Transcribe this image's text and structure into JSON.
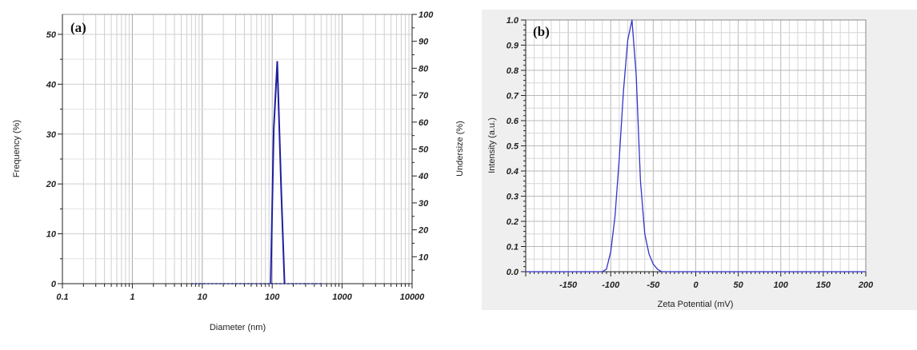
{
  "chart_data": [
    {
      "panel_label": "(a)",
      "type": "line",
      "xlabel": "Diameter (nm)",
      "ylabel": "Frequency (%)",
      "y2label": "Undersize (%)",
      "xscale": "log",
      "xlim": [
        0.1,
        10000
      ],
      "ylim": [
        0,
        54
      ],
      "y2lim": [
        0,
        100
      ],
      "xticks": [
        0.1,
        1,
        10,
        100,
        1000,
        10000
      ],
      "xtick_labels": [
        "0.1",
        "1",
        "10",
        "100",
        "1000",
        "10000"
      ],
      "yticks": [
        0,
        10,
        20,
        30,
        40,
        50
      ],
      "ytick_labels": [
        "0",
        "10",
        "20",
        "30",
        "40",
        "50"
      ],
      "y2ticks": [
        10,
        20,
        30,
        40,
        50,
        60,
        70,
        80,
        90,
        100
      ],
      "y2tick_labels": [
        "10",
        "20",
        "30",
        "40",
        "50",
        "60",
        "70",
        "80",
        "90",
        "100"
      ],
      "grid": true,
      "series": [
        {
          "style": "solid",
          "color": "#1f1f9f",
          "x": [
            95,
            105,
            118,
            135,
            150
          ],
          "y": [
            0,
            31,
            44.5,
            18,
            0
          ]
        },
        {
          "style": "dotted",
          "color": "#1f1f9f",
          "x": [
            7,
            95,
            150,
            500
          ],
          "y": [
            0,
            0,
            0,
            0
          ]
        }
      ]
    },
    {
      "panel_label": "(b)",
      "type": "line",
      "xlabel": "Zeta Potential (mV)",
      "ylabel": "Intensity (a.u.)",
      "xlim": [
        -200,
        200
      ],
      "ylim": [
        0,
        1
      ],
      "xticks": [
        -150,
        -100,
        -50,
        0,
        50,
        100,
        150,
        200
      ],
      "xtick_labels": [
        "-150",
        "-100",
        "-50",
        "0",
        "50",
        "100",
        "150",
        "200"
      ],
      "yticks": [
        0,
        0.1,
        0.2,
        0.3,
        0.4,
        0.5,
        0.6,
        0.7,
        0.8,
        0.9,
        1.0
      ],
      "ytick_labels": [
        "0.0",
        "0.1",
        "0.2",
        "0.3",
        "0.4",
        "0.5",
        "0.6",
        "0.7",
        "0.8",
        "0.9",
        "1.0"
      ],
      "grid": true,
      "background": "#efefef",
      "series": [
        {
          "style": "solid",
          "color": "#3333cc",
          "x": [
            -200,
            -110,
            -105,
            -100,
            -95,
            -90,
            -85,
            -80,
            -75,
            -70,
            -65,
            -60,
            -55,
            -50,
            -45,
            -40,
            -35,
            -30,
            200
          ],
          "y": [
            0,
            0,
            0.01,
            0.08,
            0.22,
            0.45,
            0.72,
            0.92,
            1.0,
            0.78,
            0.36,
            0.15,
            0.07,
            0.03,
            0.01,
            0,
            0,
            0,
            0
          ]
        }
      ]
    }
  ]
}
